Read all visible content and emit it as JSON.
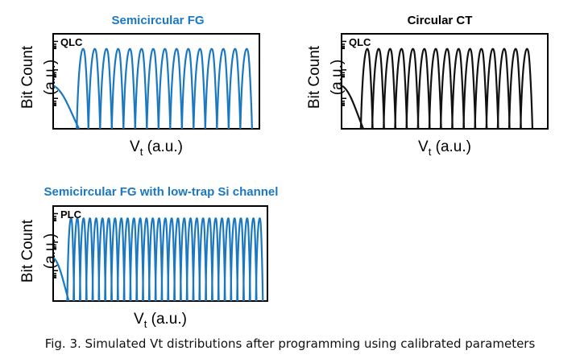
{
  "caption": "Fig. 3. Simulated Vt distributions after programming using calibrated parameters",
  "chart_data": [
    {
      "type": "line",
      "title": "Semicircular  FG",
      "title_color": "#1a78c2",
      "line_color": "#1a78c2",
      "cell_type": "QLC",
      "num_states": 16,
      "xlabel_main": "V",
      "xlabel_sub": "t",
      "xlabel_rest": " (a.u.)",
      "ylabel": "Bit Count",
      "ylabel_unit": "(a.u.)",
      "xlim": [
        0,
        1
      ],
      "ylim": [
        0,
        1
      ]
    },
    {
      "type": "line",
      "title": "Circular CT",
      "title_color": "#000000",
      "line_color": "#111111",
      "cell_type": "QLC",
      "num_states": 16,
      "xlabel_main": "V",
      "xlabel_sub": "t",
      "xlabel_rest": " (a.u.)",
      "ylabel": "Bit Count",
      "ylabel_unit": "(a.u.)",
      "xlim": [
        0,
        1
      ],
      "ylim": [
        0,
        1
      ]
    },
    {
      "type": "line",
      "title": "Semicircular  FG with low-trap Si channel",
      "title_color": "#1a78c2",
      "line_color": "#1a78c2",
      "cell_type": "PLC",
      "num_states": 32,
      "xlabel_main": "V",
      "xlabel_sub": "t",
      "xlabel_rest": " (a.u.)",
      "ylabel": "Bit Count",
      "ylabel_unit": "(a.u.)",
      "xlim": [
        0,
        1
      ],
      "ylim": [
        0,
        1
      ]
    }
  ]
}
